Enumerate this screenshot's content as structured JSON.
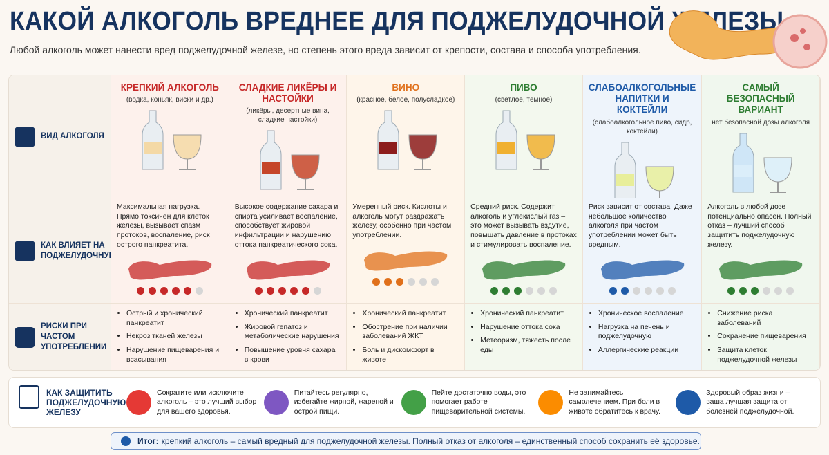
{
  "header": {
    "title": "КАКОЙ АЛКОГОЛЬ ВРЕДНЕЕ ДЛЯ ПОДЖЕЛУДОЧНОЙ ЖЕЛЕЗЫ",
    "subtitle": "Любой алкоголь может нанести вред поджелудочной железе, но степень этого вреда зависит от крепости, состава и способа употребления."
  },
  "row_labels": [
    "ВИД АЛКОГОЛЯ",
    "КАК ВЛИЯЕТ НА ПОДЖЕЛУДОЧНУЮ",
    "РИСКИ ПРИ ЧАСТОМ УПОТРЕБЛЕНИИ"
  ],
  "columns": [
    {
      "title": "КРЕПКИЙ АЛКОГОЛЬ",
      "subtitle": "(водка, коньяк, виски и др.)",
      "color": "#c62828",
      "effect": "Максимальная нагрузка. Прямо токсичен для клеток железы, вызывает спазм протоков, воспаление, риск острого панкреатита.",
      "risk_level": 5,
      "risks": [
        "Острый и хронический панкреатит",
        "Некроз тканей железы",
        "Нарушение пищеварения и всасывания"
      ]
    },
    {
      "title": "СЛАДКИЕ ЛИКЁРЫ И НАСТОЙКИ",
      "subtitle": "(ликёры, десертные вина, сладкие настойки)",
      "color": "#c62828",
      "effect": "Высокое содержание сахара и спирта усиливает воспаление, способствует жировой инфильтрации и нарушению оттока панкреатического сока.",
      "risk_level": 5,
      "risks": [
        "Хронический панкреатит",
        "Жировой гепатоз и метаболические нарушения",
        "Повышение уровня сахара в крови"
      ]
    },
    {
      "title": "ВИНО",
      "subtitle": "(красное, белое, полусладкое)",
      "color": "#e0701b",
      "effect": "Умеренный риск. Кислоты и алкоголь могут раздражать железу, особенно при частом употреблении.",
      "risk_level": 3,
      "risks": [
        "Хронический панкреатит",
        "Обострение при наличии заболеваний ЖКТ",
        "Боль и дискомфорт в животе"
      ]
    },
    {
      "title": "ПИВО",
      "subtitle": "(светлое, тёмное)",
      "color": "#2e7d32",
      "effect": "Средний риск. Содержит алкоголь и углекислый газ – это может вызывать вздутие, повышать давление в протоках и стимулировать воспаление.",
      "risk_level": 3,
      "risks": [
        "Хронический панкреатит",
        "Нарушение оттока сока",
        "Метеоризм, тяжесть после еды"
      ]
    },
    {
      "title": "СЛАБОАЛКОГОЛЬНЫЕ НАПИТКИ И КОКТЕЙЛИ",
      "subtitle": "(слабоалкогольное пиво, сидр, коктейли)",
      "color": "#1e5aa8",
      "effect": "Риск зависит от состава. Даже небольшое количество алкоголя при частом употреблении может быть вредным.",
      "risk_level": 2,
      "risks": [
        "Хроническое воспаление",
        "Нагрузка на печень и поджелудочную",
        "Аллергические реакции"
      ]
    },
    {
      "title": "САМЫЙ БЕЗОПАСНЫЙ ВАРИАНТ",
      "subtitle": "нет безопасной дозы алкоголя",
      "color": "#2e7d32",
      "effect": "Алкоголь в любой дозе потенциально опасен. Полный отказ – лучший способ защитить поджелудочную железу.",
      "risk_level": 3,
      "risks": [
        "Снижение риска заболеваний",
        "Сохранение пищеварения",
        "Защита клеток поджелудочной железы"
      ]
    }
  ],
  "protection": {
    "label": "КАК ЗАЩИТИТЬ ПОДЖЕЛУДОЧНУЮ ЖЕЛЕЗУ",
    "tips": [
      "Сократите или исключите алкоголь – это лучший выбор для вашего здоровья.",
      "Питайтесь регулярно, избегайте жирной, жареной и острой пищи.",
      "Пейте достаточно воды, это помогает работе пищеварительной системы.",
      "Не занимайтесь самолечением. При боли в животе обратитесь к врачу.",
      "Здоровый образ жизни – ваша лучшая защита от болезней поджелудочной."
    ]
  },
  "summary": {
    "label": "Итог:",
    "text": "крепкий алкоголь – самый вредный для поджелудочной железы. Полный отказ от алкоголя – единственный способ сохранить её здоровье."
  }
}
